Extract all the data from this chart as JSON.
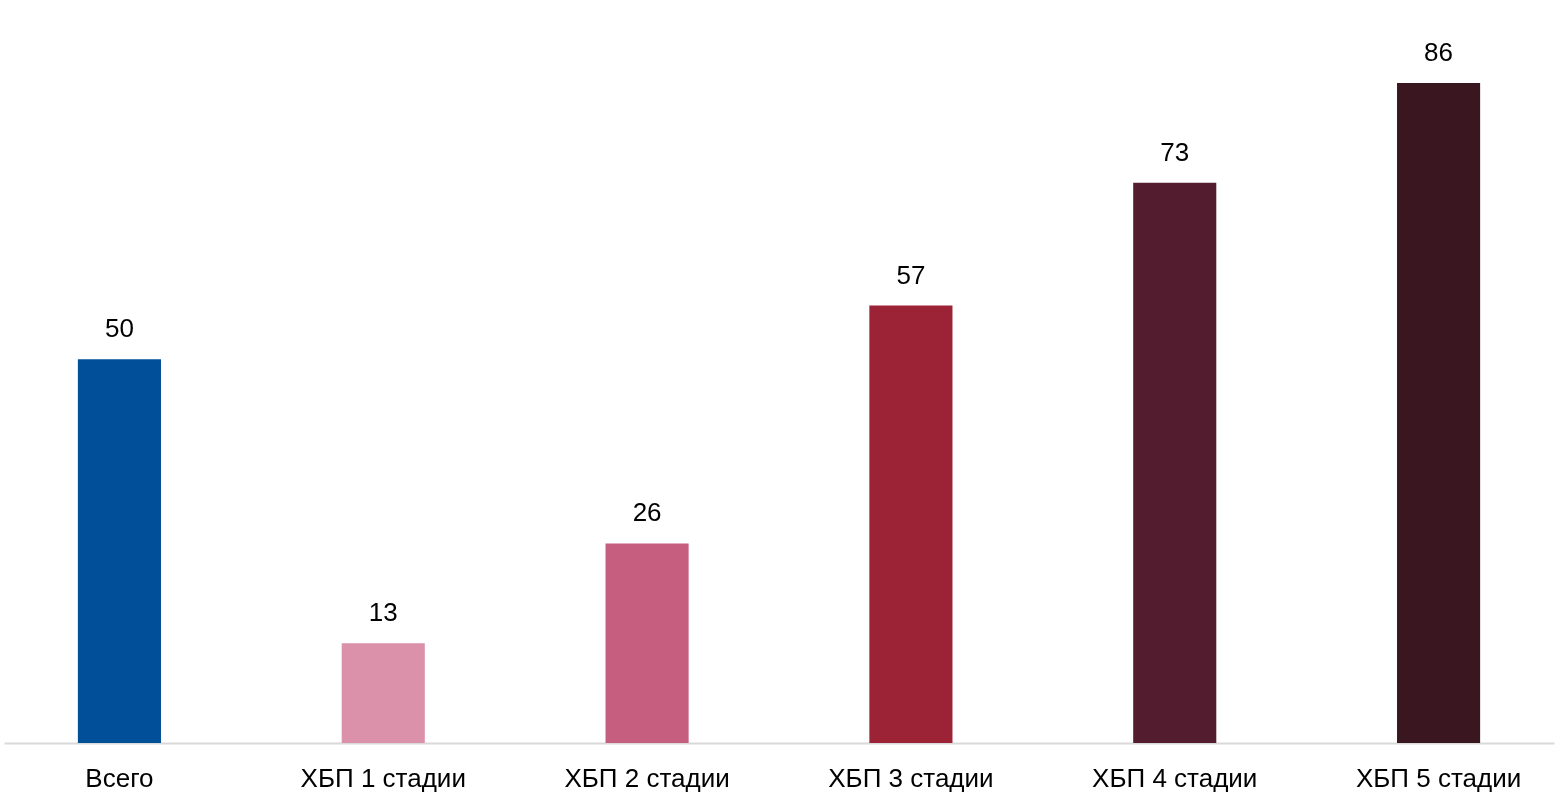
{
  "chart_data": {
    "type": "bar",
    "categories": [
      "Всего",
      "ХБП 1 стадии",
      "ХБП 2 стадии",
      "ХБП 3 стадии",
      "ХБП 4 стадии",
      "ХБП 5 стадии"
    ],
    "values": [
      50,
      13,
      26,
      57,
      73,
      86
    ],
    "colors": [
      "#004f98",
      "#db91aa",
      "#c65f7f",
      "#9c2236",
      "#541d2f",
      "#3a1620"
    ],
    "data_labels": true
  }
}
